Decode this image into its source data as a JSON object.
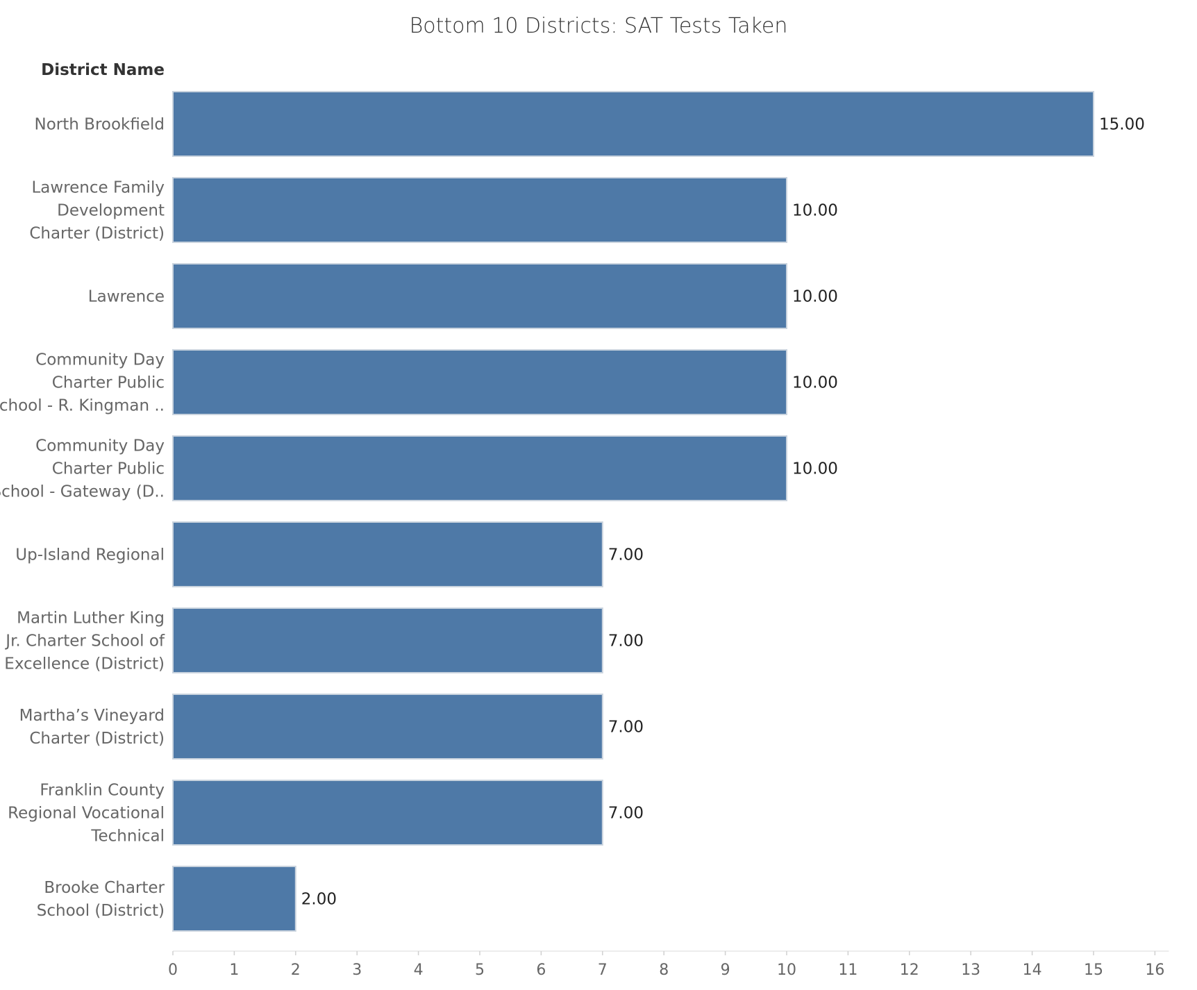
{
  "chart_data": {
    "type": "bar",
    "orientation": "horizontal",
    "title": "Bottom 10 Districts: SAT Tests Taken",
    "row_header": "District Name",
    "categories": [
      [
        "North Brookfield"
      ],
      [
        "Lawrence Family",
        "Development",
        "Charter (District)"
      ],
      [
        "Lawrence"
      ],
      [
        "Community Day",
        "Charter Public",
        "School - R. Kingman .."
      ],
      [
        "Community Day",
        "Charter Public",
        "School - Gateway (D.."
      ],
      [
        "Up-Island Regional"
      ],
      [
        "Martin Luther King",
        "Jr. Charter School of",
        "Excellence (District)"
      ],
      [
        "Martha’s Vineyard",
        "Charter (District)"
      ],
      [
        "Franklin County",
        "Regional Vocational",
        "Technical"
      ],
      [
        "Brooke Charter",
        "School (District)"
      ]
    ],
    "values": [
      15,
      10,
      10,
      10,
      10,
      7,
      7,
      7,
      7,
      2
    ],
    "value_labels": [
      "15.00",
      "10.00",
      "10.00",
      "10.00",
      "10.00",
      "7.00",
      "7.00",
      "7.00",
      "7.00",
      "2.00"
    ],
    "xlim": [
      0,
      16
    ],
    "x_ticks": [
      0,
      1,
      2,
      3,
      4,
      5,
      6,
      7,
      8,
      9,
      10,
      11,
      12,
      13,
      14,
      15,
      16
    ],
    "bar_color": "#4e79a7",
    "grid": false,
    "legend": "none"
  }
}
